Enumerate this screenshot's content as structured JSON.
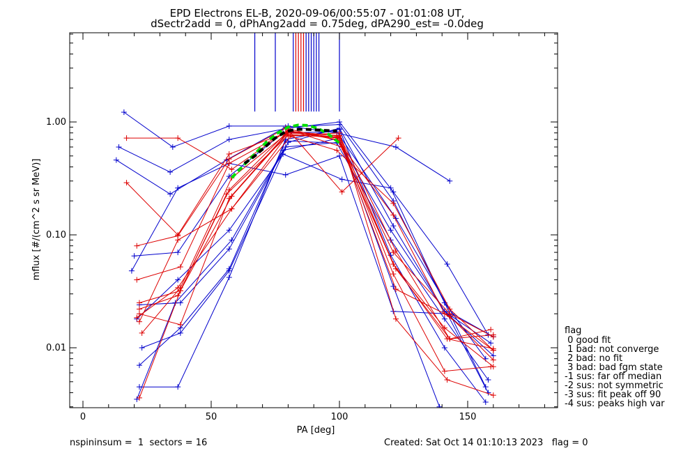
{
  "title_line1": "EPD Electrons EL-B, 2020-09-06/00:55:07 - 01:01:08 UT,",
  "title_line2": "dSectr2add = 0, dPhAng2add = 0.75deg, dPA290_est=  -0.0deg",
  "legend": {
    "title": "flag",
    "items": [
      " 0 good fit",
      " 1 bad: not converge",
      " 2 bad: no fit",
      " 3 bad: bad fgm state",
      "-1 sus: far off median",
      "-2 sus: not symmetric",
      "-3 sus: fit peak off 90",
      "-4 sus: peaks high var"
    ]
  },
  "footer": {
    "left": "nspininsum =  1  sectors = 16",
    "right": "Created: Sat Oct 14 01:10:13 2023   flag = 0"
  },
  "colors": {
    "blue": "#0000cc",
    "red": "#dd0000",
    "green": "#00dd00",
    "black": "#000000"
  },
  "chart_data": {
    "type": "line",
    "xlabel": "PA [deg]",
    "ylabel": "mflux [#/(cm^2 s sr MeV)]",
    "xlim": [
      -5,
      185
    ],
    "ylim": [
      0.003,
      6.0
    ],
    "yscale": "log",
    "xticks": [
      0,
      50,
      100,
      150
    ],
    "xtick_labels": [
      "0",
      "50",
      "100",
      "150"
    ],
    "yticks": [
      0.01,
      0.1,
      1.0
    ],
    "ytick_labels": [
      "0.01",
      "0.10",
      "1.00"
    ],
    "grid": false,
    "vlines": {
      "blue": [
        67,
        75,
        82,
        87,
        88,
        89,
        90,
        91,
        92,
        100
      ],
      "red": [
        83,
        84,
        85,
        86
      ]
    },
    "series": [
      {
        "color": "blue",
        "x": [
          16,
          35,
          57,
          80,
          99,
          122,
          143
        ],
        "y": [
          1.22,
          0.6,
          0.92,
          0.92,
          0.8,
          0.6,
          0.3
        ]
      },
      {
        "color": "blue",
        "x": [
          14,
          34,
          57,
          80,
          100,
          121,
          142,
          158
        ],
        "y": [
          0.6,
          0.36,
          0.7,
          0.88,
          1.0,
          0.24,
          0.055,
          0.013
        ]
      },
      {
        "color": "blue",
        "x": [
          13,
          34,
          56,
          79,
          100,
          121,
          141,
          157
        ],
        "y": [
          0.46,
          0.23,
          0.46,
          0.9,
          0.95,
          0.2,
          0.025,
          0.008
        ]
      },
      {
        "color": "blue",
        "x": [
          20,
          37,
          57,
          78,
          99,
          122,
          144,
          160
        ],
        "y": [
          0.065,
          0.07,
          0.33,
          0.8,
          0.82,
          0.14,
          0.02,
          0.0125
        ]
      },
      {
        "color": "blue",
        "x": [
          19,
          37,
          57,
          79,
          100,
          121,
          142,
          158
        ],
        "y": [
          0.048,
          0.26,
          0.43,
          0.34,
          0.5,
          0.021,
          0.02,
          0.004
        ]
      },
      {
        "color": "blue",
        "x": [
          21,
          37,
          57,
          78,
          101,
          120,
          141,
          157
        ],
        "y": [
          0.018,
          0.04,
          0.11,
          0.52,
          0.31,
          0.26,
          0.025,
          0.0045
        ]
      },
      {
        "color": "blue",
        "x": [
          22,
          38,
          57,
          79,
          100,
          120,
          141,
          160
        ],
        "y": [
          0.024,
          0.025,
          0.075,
          0.6,
          0.66,
          0.11,
          0.021,
          0.0085
        ]
      },
      {
        "color": "blue",
        "x": [
          22,
          38,
          57,
          79,
          99,
          120,
          141,
          158
        ],
        "y": [
          0.007,
          0.015,
          0.05,
          0.68,
          0.65,
          0.09,
          0.018,
          0.0052
        ]
      },
      {
        "color": "blue",
        "x": [
          22,
          37,
          57,
          79,
          100,
          120,
          141,
          157
        ],
        "y": [
          0.0045,
          0.0045,
          0.042,
          0.7,
          0.86,
          0.066,
          0.01,
          0.0033
        ]
      },
      {
        "color": "blue",
        "x": [
          21,
          36,
          58,
          78,
          100,
          121,
          139
        ],
        "y": [
          0.0035,
          0.025,
          0.09,
          0.56,
          0.72,
          0.035,
          0.003
        ]
      },
      {
        "color": "blue",
        "x": [
          23,
          38,
          57,
          80,
          100,
          121,
          141,
          159
        ],
        "y": [
          0.01,
          0.0135,
          0.048,
          0.66,
          0.88,
          0.12,
          0.021,
          0.011
        ]
      },
      {
        "color": "red",
        "x": [
          17,
          37,
          58,
          80,
          101,
          123
        ],
        "y": [
          0.72,
          0.72,
          0.38,
          0.85,
          0.24,
          0.72
        ]
      },
      {
        "color": "red",
        "x": [
          17,
          37,
          57,
          78,
          99,
          121,
          143,
          160
        ],
        "y": [
          0.29,
          0.1,
          0.52,
          0.78,
          0.56,
          0.19,
          0.022,
          0.0095
        ]
      },
      {
        "color": "red",
        "x": [
          21,
          37,
          57,
          79,
          100,
          121,
          143,
          160
        ],
        "y": [
          0.08,
          0.098,
          0.47,
          0.88,
          0.68,
          0.07,
          0.02,
          0.0125
        ]
      },
      {
        "color": "red",
        "x": [
          21,
          38,
          57,
          80,
          99,
          121,
          141,
          160
        ],
        "y": [
          0.04,
          0.052,
          0.43,
          0.83,
          0.7,
          0.15,
          0.02,
          0.0095
        ]
      },
      {
        "color": "red",
        "x": [
          22,
          38,
          58,
          80,
          100,
          122,
          143,
          159
        ],
        "y": [
          0.025,
          0.032,
          0.22,
          0.8,
          0.76,
          0.072,
          0.012,
          0.0145
        ]
      },
      {
        "color": "red",
        "x": [
          22,
          37,
          57,
          80,
          100,
          121,
          141,
          160
        ],
        "y": [
          0.022,
          0.029,
          0.25,
          0.83,
          0.75,
          0.055,
          0.015,
          0.0068
        ]
      },
      {
        "color": "red",
        "x": [
          22,
          38,
          57,
          80,
          99,
          122,
          143,
          160
        ],
        "y": [
          0.02,
          0.016,
          0.21,
          0.82,
          0.73,
          0.05,
          0.012,
          0.013
        ]
      },
      {
        "color": "red",
        "x": [
          21,
          37,
          58,
          80,
          100,
          121,
          141,
          159
        ],
        "y": [
          0.0185,
          0.034,
          0.17,
          0.78,
          0.72,
          0.045,
          0.0062,
          0.0068
        ]
      },
      {
        "color": "red",
        "x": [
          22,
          37,
          58,
          81,
          100,
          122,
          142,
          160
        ],
        "y": [
          0.017,
          0.09,
          0.17,
          0.75,
          0.8,
          0.018,
          0.0052,
          0.0038
        ]
      },
      {
        "color": "red",
        "x": [
          22,
          38,
          56,
          80,
          99,
          121,
          142,
          160
        ],
        "y": [
          0.0036,
          0.032,
          0.23,
          0.76,
          0.74,
          0.055,
          0.012,
          0.0098
        ]
      },
      {
        "color": "red",
        "x": [
          23,
          38,
          58,
          81,
          101,
          122,
          143,
          160
        ],
        "y": [
          0.0135,
          0.034,
          0.32,
          0.84,
          0.6,
          0.033,
          0.019,
          0.0078
        ]
      }
    ],
    "fit_curves": [
      {
        "color": "green",
        "dashed": true,
        "x": [
          58,
          63,
          68,
          72,
          76,
          80,
          84,
          88,
          92,
          96,
          100
        ],
        "y": [
          0.32,
          0.42,
          0.55,
          0.68,
          0.8,
          0.9,
          0.94,
          0.93,
          0.87,
          0.77,
          0.65
        ]
      },
      {
        "color": "black",
        "dashed": true,
        "x": [
          63,
          67,
          71,
          75,
          79,
          83,
          87,
          91,
          95,
          99
        ],
        "y": [
          0.43,
          0.5,
          0.6,
          0.72,
          0.82,
          0.86,
          0.86,
          0.85,
          0.84,
          0.83
        ]
      }
    ]
  }
}
